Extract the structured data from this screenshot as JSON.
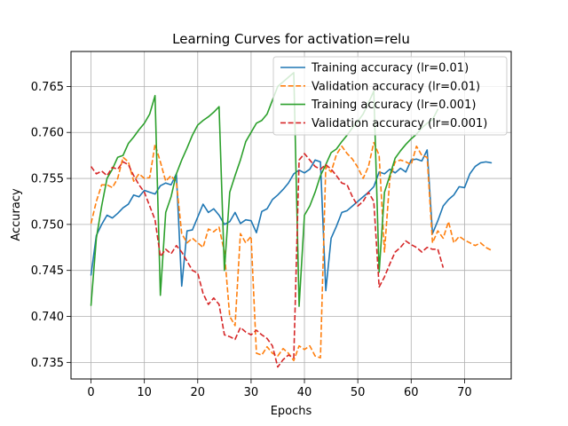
{
  "chart_data": {
    "type": "line",
    "title": "Learning Curves for activation=relu",
    "xlabel": "Epochs",
    "ylabel": "Accuracy",
    "xlim": [
      -3.75,
      78.75
    ],
    "ylim": [
      0.7332,
      0.7688
    ],
    "xticks": [
      0,
      10,
      20,
      30,
      40,
      50,
      60,
      70
    ],
    "yticks": [
      0.735,
      0.74,
      0.745,
      0.75,
      0.755,
      0.76,
      0.765
    ],
    "ytick_labels": [
      "0.735",
      "0.740",
      "0.745",
      "0.750",
      "0.755",
      "0.760",
      "0.765"
    ],
    "grid": true,
    "legend_position": "upper right",
    "series": [
      {
        "name": "Training accuracy (lr=0.01)",
        "color": "#1f77b4",
        "dash": "solid",
        "x_start": 0,
        "values": [
          0.7445,
          0.7488,
          0.75,
          0.751,
          0.7507,
          0.7512,
          0.7518,
          0.7522,
          0.7532,
          0.753,
          0.7537,
          0.7535,
          0.7533,
          0.7542,
          0.7545,
          0.7543,
          0.7555,
          0.7433,
          0.7493,
          0.7494,
          0.7508,
          0.7522,
          0.7513,
          0.7517,
          0.751,
          0.75,
          0.7503,
          0.7513,
          0.7501,
          0.7505,
          0.7504,
          0.7491,
          0.7514,
          0.7517,
          0.7527,
          0.7532,
          0.7538,
          0.7545,
          0.7555,
          0.7559,
          0.7556,
          0.756,
          0.757,
          0.7568,
          0.7428,
          0.7485,
          0.7498,
          0.7513,
          0.7515,
          0.752,
          0.7525,
          0.753,
          0.7535,
          0.7541,
          0.7557,
          0.7555,
          0.756,
          0.7556,
          0.7561,
          0.7557,
          0.757,
          0.7571,
          0.7569,
          0.7581,
          0.749,
          0.7504,
          0.752,
          0.7527,
          0.7532,
          0.7541,
          0.754,
          0.7555,
          0.7563,
          0.7567,
          0.7568,
          0.7567
        ]
      },
      {
        "name": "Validation accuracy (lr=0.01)",
        "color": "#ff7f0e",
        "dash": "dashed",
        "x_start": 0,
        "values": [
          0.7501,
          0.7525,
          0.7543,
          0.7543,
          0.754,
          0.755,
          0.7573,
          0.7568,
          0.7547,
          0.7555,
          0.755,
          0.7551,
          0.7587,
          0.7568,
          0.7547,
          0.7553,
          0.7546,
          0.749,
          0.748,
          0.7485,
          0.748,
          0.7475,
          0.7495,
          0.7492,
          0.7497,
          0.747,
          0.74,
          0.739,
          0.749,
          0.748,
          0.7487,
          0.736,
          0.7358,
          0.7367,
          0.736,
          0.7357,
          0.7365,
          0.736,
          0.7352,
          0.7368,
          0.7364,
          0.7368,
          0.7357,
          0.7355,
          0.7563,
          0.7557,
          0.7576,
          0.7585,
          0.7577,
          0.7571,
          0.7562,
          0.755,
          0.7563,
          0.7589,
          0.7575,
          0.747,
          0.755,
          0.7568,
          0.757,
          0.7568,
          0.7565,
          0.7585,
          0.7575,
          0.7573,
          0.748,
          0.7493,
          0.7485,
          0.7503,
          0.748,
          0.7487,
          0.7483,
          0.748,
          0.7477,
          0.748,
          0.7475,
          0.7472
        ]
      },
      {
        "name": "Training accuracy (lr=0.001)",
        "color": "#2ca02c",
        "dash": "solid",
        "x_start": 0,
        "values": [
          0.7412,
          0.7485,
          0.752,
          0.755,
          0.756,
          0.7573,
          0.7575,
          0.7588,
          0.7595,
          0.7603,
          0.761,
          0.762,
          0.764,
          0.7423,
          0.7513,
          0.753,
          0.7555,
          0.757,
          0.7583,
          0.7597,
          0.7608,
          0.7613,
          0.7617,
          0.7622,
          0.7628,
          0.745,
          0.7535,
          0.7553,
          0.757,
          0.759,
          0.76,
          0.761,
          0.7613,
          0.762,
          0.7635,
          0.765,
          0.7655,
          0.766,
          0.7665,
          0.7411,
          0.751,
          0.752,
          0.7535,
          0.7553,
          0.7565,
          0.7578,
          0.7582,
          0.759,
          0.7597,
          0.7605,
          0.7612,
          0.762,
          0.7632,
          0.7645,
          0.7448,
          0.7535,
          0.7553,
          0.7572,
          0.758,
          0.7587,
          0.7593,
          0.7598,
          0.7605,
          0.761,
          0.7614,
          0.7625
        ]
      },
      {
        "name": "Validation accuracy (lr=0.001)",
        "color": "#d62728",
        "dash": "dashed",
        "x_start": 0,
        "values": [
          0.7563,
          0.7555,
          0.7558,
          0.7553,
          0.7562,
          0.756,
          0.7568,
          0.7565,
          0.7553,
          0.7543,
          0.7535,
          0.752,
          0.7505,
          0.7465,
          0.7473,
          0.7468,
          0.7477,
          0.747,
          0.746,
          0.745,
          0.7447,
          0.7425,
          0.7413,
          0.742,
          0.7413,
          0.738,
          0.7378,
          0.7375,
          0.7388,
          0.7383,
          0.738,
          0.7385,
          0.738,
          0.7376,
          0.7368,
          0.7345,
          0.7353,
          0.7358,
          0.7355,
          0.757,
          0.7577,
          0.757,
          0.7563,
          0.756,
          0.7565,
          0.756,
          0.7553,
          0.7545,
          0.7543,
          0.753,
          0.752,
          0.7525,
          0.7535,
          0.7525,
          0.7432,
          0.7443,
          0.7457,
          0.747,
          0.7475,
          0.7482,
          0.7478,
          0.7475,
          0.747,
          0.7475,
          0.7473,
          0.7473,
          0.7453
        ]
      }
    ]
  }
}
